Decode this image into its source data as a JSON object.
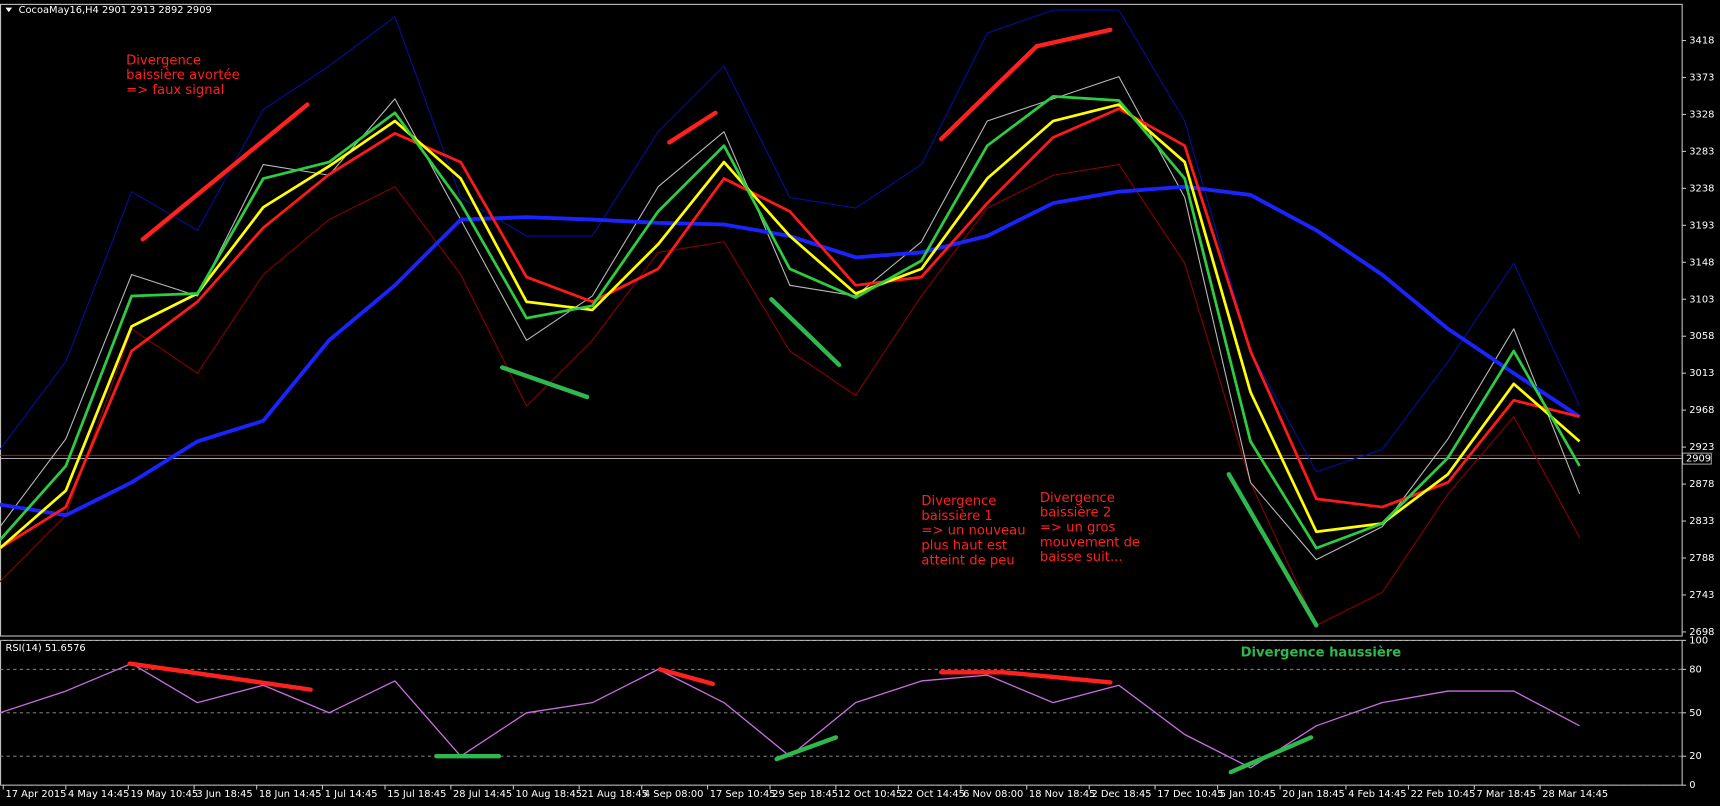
{
  "chart_data": [
    {
      "type": "line",
      "title": "CocoaMay16,H4  2901 2913 2892 2909",
      "xlim": [
        0,
        255
      ],
      "ylim": [
        2693,
        3462
      ],
      "yticks": [
        2698,
        2743,
        2788,
        2833,
        2878,
        2923,
        2968,
        3013,
        3058,
        3103,
        3148,
        3193,
        3238,
        3283,
        3328,
        3373,
        3418
      ],
      "x": [
        0,
        10,
        20,
        30,
        40,
        50,
        60,
        70,
        80,
        90,
        100,
        110,
        120,
        130,
        140,
        150,
        160,
        170,
        180,
        190,
        200,
        210,
        220,
        230,
        240
      ],
      "series": [
        {
          "color": "#8a0000",
          "values": [
            2759,
            2840,
            3067,
            3013,
            3133,
            3200,
            3240,
            3133,
            2973,
            3053,
            3160,
            3173,
            3040,
            2986,
            3107,
            3214,
            3254,
            3267,
            3147,
            2880,
            2706,
            2746,
            2866,
            2960,
            2813
          ]
        },
        {
          "color": "#0010a0",
          "values": [
            2920,
            3027,
            3234,
            3187,
            3334,
            3387,
            3447,
            3227,
            3180,
            3180,
            3307,
            3387,
            3227,
            3214,
            3267,
            3427,
            3455,
            3455,
            3320,
            3040,
            2893,
            2920,
            3027,
            3147,
            2973
          ]
        },
        {
          "color": "#b8b8b8",
          "values": [
            2826,
            2933,
            3133,
            3107,
            3267,
            3254,
            3347,
            3200,
            3053,
            3107,
            3240,
            3307,
            3120,
            3107,
            3173,
            3320,
            3347,
            3374,
            3227,
            2880,
            2786,
            2826,
            2933,
            3067,
            2866
          ]
        },
        {
          "color": "#1a24ff",
          "values": [
            2853,
            2840,
            2880,
            2930,
            2955,
            3053,
            3120,
            3200,
            3203,
            3200,
            3196,
            3194,
            3180,
            3154,
            3160,
            3180,
            3220,
            3234,
            3240,
            3230,
            3187,
            3133,
            3067,
            3013,
            2960
          ]
        },
        {
          "color": "#ff1a1a",
          "values": [
            2800,
            2850,
            3040,
            3100,
            3190,
            3255,
            3305,
            3270,
            3130,
            3100,
            3140,
            3250,
            3210,
            3120,
            3130,
            3220,
            3300,
            3335,
            3290,
            3040,
            2860,
            2850,
            2880,
            2980,
            2960
          ]
        },
        {
          "color": "#ffff00",
          "values": [
            2800,
            2870,
            3070,
            3110,
            3215,
            3265,
            3320,
            3250,
            3100,
            3090,
            3170,
            3270,
            3180,
            3110,
            3140,
            3250,
            3320,
            3340,
            3270,
            2990,
            2820,
            2830,
            2890,
            3000,
            2930
          ]
        },
        {
          "color": "#2ecc40",
          "values": [
            2810,
            2900,
            3107,
            3110,
            3250,
            3270,
            3330,
            3220,
            3080,
            3095,
            3210,
            3290,
            3140,
            3105,
            3150,
            3290,
            3350,
            3345,
            3250,
            2930,
            2800,
            2830,
            2910,
            3040,
            2900
          ]
        }
      ],
      "price_lines": [
        {
          "value": 2913,
          "color": "#ff0000"
        },
        {
          "value": 2909,
          "color": "#c0c0c0",
          "tag": true
        }
      ],
      "trend_lines": [
        {
          "color": "#ff2020",
          "x": [
            21.7,
            46.7
          ],
          "y": [
            3176,
            3340
          ]
        },
        {
          "color": "#ff2020",
          "x": [
            101.7,
            108.7
          ],
          "y": [
            3294,
            3330
          ]
        },
        {
          "color": "#ff2020",
          "x": [
            143,
            157.5
          ],
          "y": [
            3298,
            3411
          ]
        },
        {
          "color": "#ff2020",
          "x": [
            157.5,
            168.7
          ],
          "y": [
            3411,
            3431
          ]
        },
        {
          "color": "#2eb84e",
          "x": [
            76.3,
            89.2
          ],
          "y": [
            3020,
            2984
          ]
        },
        {
          "color": "#2eb84e",
          "x": [
            117.2,
            127.5
          ],
          "y": [
            3103,
            3023
          ]
        },
        {
          "color": "#2eb84e",
          "x": [
            186.7,
            200
          ],
          "y": [
            2890,
            2706
          ]
        }
      ],
      "annotations": [
        {
          "color": "#ff2020",
          "lines": [
            "Divergence",
            "baissière avortée",
            "=> faux signal"
          ]
        },
        {
          "color": "#ff2020",
          "lines": [
            "Divergence",
            "baissière 1",
            "=> un nouveau",
            "plus haut est",
            "atteint de peu"
          ]
        },
        {
          "color": "#ff2020",
          "lines": [
            "Divergence",
            "baissière 2",
            "=> un gros",
            "mouvement de",
            "baisse suit..."
          ]
        }
      ]
    },
    {
      "type": "line",
      "title": "RSI(14) 51.6576",
      "xlim": [
        0,
        255
      ],
      "ylim": [
        0,
        100
      ],
      "yticks": [
        0,
        20,
        50,
        80,
        100
      ],
      "grid": "dashed",
      "x": [
        0,
        10,
        20,
        30,
        40,
        50,
        60,
        70,
        80,
        90,
        100,
        110,
        120,
        130,
        140,
        150,
        160,
        170,
        180,
        190,
        200,
        210,
        220,
        230,
        240
      ],
      "xticks": [
        {
          "value": 0.5,
          "label": "17 Apr 2015"
        },
        {
          "value": 10,
          "label": "4 May 14:45"
        },
        {
          "value": 19.5,
          "label": "19 May 10:45"
        },
        {
          "value": 29.5,
          "label": "3 Jun 18:45"
        },
        {
          "value": 39,
          "label": "18 Jun 14:45"
        },
        {
          "value": 49,
          "label": "1 Jul 14:45"
        },
        {
          "value": 58.5,
          "label": "15 Jul 18:45"
        },
        {
          "value": 68.5,
          "label": "28 Jul 14:45"
        },
        {
          "value": 78,
          "label": "10 Aug 18:45"
        },
        {
          "value": 88,
          "label": "21 Aug 18:45"
        },
        {
          "value": 97.5,
          "label": "4 Sep 08:00"
        },
        {
          "value": 107.5,
          "label": "17 Sep 10:45"
        },
        {
          "value": 117,
          "label": "29 Sep 18:45"
        },
        {
          "value": 127,
          "label": "12 Oct 10:45"
        },
        {
          "value": 136.5,
          "label": "22 Oct 14:45"
        },
        {
          "value": 146,
          "label": "6 Nov 08:00"
        },
        {
          "value": 156,
          "label": "18 Nov 18:45"
        },
        {
          "value": 165.5,
          "label": "2 Dec 18:45"
        },
        {
          "value": 175.5,
          "label": "17 Dec 10:45"
        },
        {
          "value": 185,
          "label": "5 Jan 10:45"
        },
        {
          "value": 194.5,
          "label": "20 Jan 18:45"
        },
        {
          "value": 204.5,
          "label": "4 Feb 14:45"
        },
        {
          "value": 214,
          "label": "22 Feb 10:45"
        },
        {
          "value": 224,
          "label": "7 Mar 18:45"
        },
        {
          "value": 234,
          "label": "28 Mar 14:45"
        }
      ],
      "series": [
        {
          "color": "#c86ee0",
          "values": [
            50,
            65,
            84,
            57,
            69,
            50,
            72,
            20,
            50,
            57,
            80,
            57,
            20,
            57,
            72,
            76,
            57,
            69,
            35,
            12,
            41,
            57,
            65,
            65,
            41
          ]
        }
      ],
      "trend_lines": [
        {
          "color": "#ff2020",
          "x": [
            19.7,
            47.2
          ],
          "y": [
            84,
            66
          ]
        },
        {
          "color": "#ff2020",
          "x": [
            100.3,
            108.3
          ],
          "y": [
            80,
            70
          ]
        },
        {
          "color": "#ff2020",
          "x": [
            143,
            152.5,
            168.7
          ],
          "y": [
            78,
            78,
            71
          ]
        },
        {
          "color": "#2eb84e",
          "x": [
            66.3,
            75.8
          ],
          "y": [
            20,
            20
          ]
        },
        {
          "color": "#2eb84e",
          "x": [
            118,
            127
          ],
          "y": [
            18,
            33
          ]
        },
        {
          "color": "#2eb84e",
          "x": [
            187,
            199.2
          ],
          "y": [
            9,
            33
          ]
        }
      ],
      "annotations": [
        {
          "color": "#2eb84e",
          "lines": [
            "Divergence haussière"
          ]
        }
      ]
    }
  ]
}
